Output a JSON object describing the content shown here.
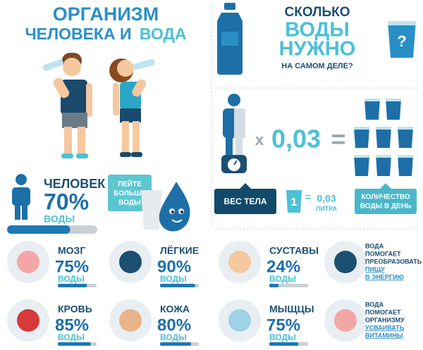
{
  "title": {
    "line1": "ОРГАНИЗМ",
    "line2a": "ЧЕЛОВЕКА И",
    "line2b": "ВОДА"
  },
  "question": {
    "line1": "СКОЛЬКО",
    "line2": "ВОДЫ",
    "line3": "НУЖНО",
    "line4": "НА САМОМ ДЕЛЕ?",
    "glass": "?"
  },
  "formula": {
    "times": "x",
    "factor": "0,03",
    "equals": "="
  },
  "legend": {
    "weight": "ВЕС ТЕЛА",
    "glass_num": "1",
    "glass_eq": "=",
    "glass_value": "0,03",
    "glass_unit": "ЛИТРА",
    "result": [
      "КОЛИЧЕСТВО",
      "ВОДЫ В ДЕНЬ"
    ]
  },
  "human": {
    "label": "ЧЕЛОВЕК",
    "percent": 70,
    "percent_label": "70%",
    "unit": "ВОДЫ"
  },
  "bubble": [
    "ПЕЙТЕ",
    "БОЛЬШЕ",
    "ВОДЫ"
  ],
  "organs": [
    {
      "name": "МОЗГ",
      "percent": 75,
      "percent_label": "75%",
      "unit": "ВОДЫ"
    },
    {
      "name": "ЛЁГКИЕ",
      "percent": 90,
      "percent_label": "90%",
      "unit": "ВОДЫ"
    },
    {
      "name": "СУСТАВЫ",
      "percent": 24,
      "percent_label": "24%",
      "unit": "ВОДЫ"
    },
    {
      "name": "КРОВЬ",
      "percent": 85,
      "percent_label": "85%",
      "unit": "ВОДЫ"
    },
    {
      "name": "КОЖА",
      "percent": 80,
      "percent_label": "80%",
      "unit": "ВОДЫ"
    },
    {
      "name": "МЫЩЦЫ",
      "percent": 75,
      "percent_label": "75%",
      "unit": "ВОДЫ"
    }
  ],
  "facts": [
    {
      "lines": [
        "ВОДА",
        "ПОМОГАЕТ",
        "ПРЕОБРАЗОВАТЬ"
      ],
      "highlight": [
        "ПИЩУ",
        "В ЭНЕРГИЮ"
      ]
    },
    {
      "lines": [
        "ВОДА",
        "ПОМОГАЕТ",
        "ОРГАНИЗМУ"
      ],
      "highlight": [
        "УСВАИВАТЬ",
        "ВИТАМИНЫ"
      ]
    }
  ]
}
